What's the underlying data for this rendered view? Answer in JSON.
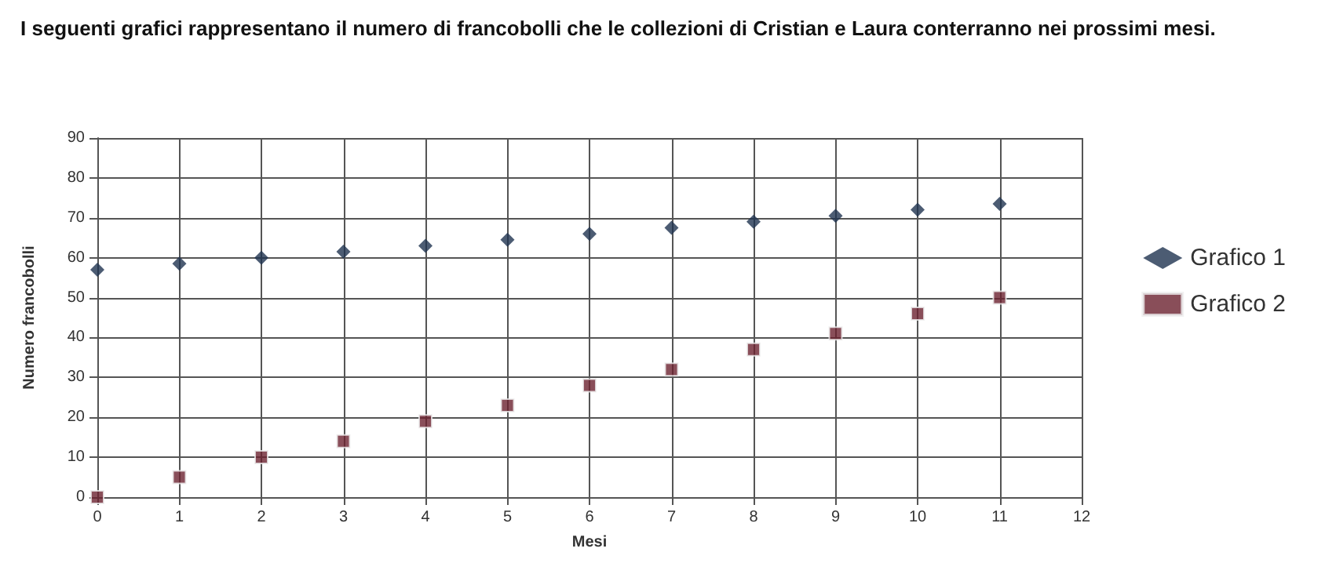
{
  "chart_data": {
    "type": "scatter",
    "title": "I seguenti grafici rappresentano il numero di francobolli che le collezioni di Cristian e Laura conterranno nei prossimi mesi.",
    "xlabel": "Mesi",
    "ylabel": "Numero francobolli",
    "x": [
      0,
      1,
      2,
      3,
      4,
      5,
      6,
      7,
      8,
      9,
      10,
      11
    ],
    "series": [
      {
        "name": "Grafico 1",
        "color": "#1f3350",
        "marker": "diamond",
        "values": [
          57,
          58.5,
          60,
          61.5,
          63,
          64.5,
          66,
          67.5,
          69,
          70.5,
          72,
          73.5
        ]
      },
      {
        "name": "Grafico 2",
        "color": "#6b2230",
        "marker": "square",
        "values": [
          0,
          5,
          10,
          14,
          19,
          23,
          28,
          32,
          37,
          41,
          46,
          50
        ]
      }
    ],
    "xlim": [
      0,
      12
    ],
    "xticks": [
      0,
      1,
      2,
      3,
      4,
      5,
      6,
      7,
      8,
      9,
      10,
      11,
      12
    ],
    "ylim": [
      0,
      90
    ],
    "yticks": [
      0,
      10,
      20,
      30,
      40,
      50,
      60,
      70,
      80,
      90
    ],
    "grid": true,
    "legend": "right"
  }
}
